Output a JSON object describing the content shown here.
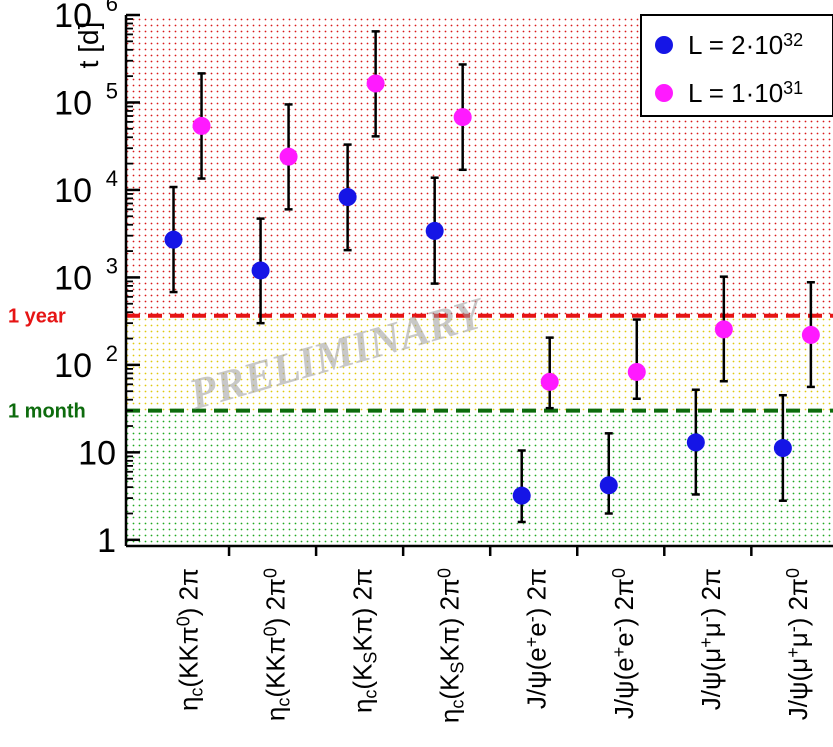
{
  "chart_data": {
    "type": "scatter",
    "ylabel": "t [d]",
    "yscale": "log",
    "ylim": [
      0.85,
      1000000
    ],
    "y_ticks": [
      {
        "value": 1,
        "label": "1",
        "exp": ""
      },
      {
        "value": 10,
        "label": "10",
        "exp": ""
      },
      {
        "value": 100,
        "label": "10",
        "exp": "2"
      },
      {
        "value": 1000,
        "label": "10",
        "exp": "3"
      },
      {
        "value": 10000,
        "label": "10",
        "exp": "4"
      },
      {
        "value": 100000,
        "label": "10",
        "exp": "5"
      },
      {
        "value": 1000000,
        "label": "10",
        "exp": "6"
      }
    ],
    "categories": [
      {
        "base": "η",
        "parts": [
          [
            "c",
            "sub"
          ],
          [
            "(KKπ",
            ""
          ],
          [
            "0",
            "sup"
          ],
          [
            ") 2π",
            ""
          ]
        ]
      },
      {
        "base": "η",
        "parts": [
          [
            "c",
            "sub"
          ],
          [
            "(KKπ",
            ""
          ],
          [
            "0",
            "sup"
          ],
          [
            ") 2π",
            ""
          ],
          [
            "0",
            "sup"
          ]
        ]
      },
      {
        "base": "η",
        "parts": [
          [
            "c",
            "sub"
          ],
          [
            "(K",
            ""
          ],
          [
            "S",
            "sub"
          ],
          [
            "Kπ) 2π",
            ""
          ]
        ]
      },
      {
        "base": "η",
        "parts": [
          [
            "c",
            "sub"
          ],
          [
            "(K",
            ""
          ],
          [
            "S",
            "sub"
          ],
          [
            "Kπ) 2π",
            ""
          ],
          [
            "0",
            "sup"
          ]
        ]
      },
      {
        "base": "J/ψ(e",
        "parts": [
          [
            "+",
            "sup"
          ],
          [
            "e",
            ""
          ],
          [
            "-",
            "sup"
          ],
          [
            ") 2π",
            ""
          ]
        ]
      },
      {
        "base": "J/ψ(e",
        "parts": [
          [
            "+",
            "sup"
          ],
          [
            "e",
            ""
          ],
          [
            "-",
            "sup"
          ],
          [
            ") 2π",
            ""
          ],
          [
            "0",
            "sup"
          ]
        ]
      },
      {
        "base": "J/ψ(μ",
        "parts": [
          [
            "+",
            "sup"
          ],
          [
            "μ",
            ""
          ],
          [
            "-",
            "sup"
          ],
          [
            ") 2π",
            ""
          ]
        ]
      },
      {
        "base": "J/ψ(μ",
        "parts": [
          [
            "+",
            "sup"
          ],
          [
            "μ",
            ""
          ],
          [
            "-",
            "sup"
          ],
          [
            ") 2π",
            ""
          ],
          [
            "0",
            "sup"
          ]
        ]
      }
    ],
    "series": [
      {
        "name": "L = 2·10",
        "name_exp": "32",
        "color": "#1515e6",
        "values": [
          2700,
          1200,
          8300,
          3400,
          3.2,
          4.2,
          13,
          11.2
        ],
        "err_low": [
          680,
          300,
          2050,
          850,
          1.6,
          2.0,
          3.3,
          2.8
        ],
        "err_high": [
          10800,
          4700,
          33000,
          13800,
          10.5,
          16.5,
          52,
          45
        ]
      },
      {
        "name": "L = 1·10",
        "name_exp": "31",
        "color": "#ff1aff",
        "values": [
          54000,
          24000,
          165000,
          68000,
          64,
          83,
          255,
          220
        ],
        "err_low": [
          13500,
          6000,
          41000,
          17000,
          32,
          41,
          65,
          56
        ],
        "err_high": [
          215000,
          95000,
          650000,
          272000,
          205,
          330,
          1020,
          880
        ]
      }
    ],
    "thresholds": [
      {
        "label": "1 year",
        "value": 365,
        "color": "#e61414"
      },
      {
        "label": "1 month",
        "value": 30,
        "color": "#0d6b0d"
      }
    ],
    "regions": {
      "high": "#d91a1a",
      "mid": "#e0c810",
      "low": "#21a821"
    },
    "legend_position": "top-right",
    "watermark": "PRELIMINARY"
  }
}
